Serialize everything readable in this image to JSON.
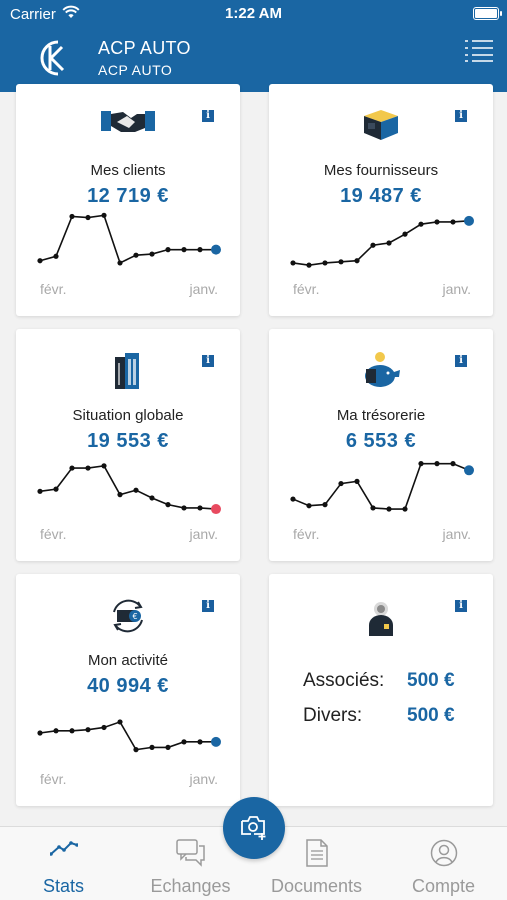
{
  "status_bar": {
    "carrier": "Carrier",
    "time": "1:22 AM"
  },
  "header": {
    "company_name": "ACP AUTO",
    "company_subtitle": "ACP AUTO"
  },
  "colors": {
    "brand": "#1a66a3",
    "alert_point": "#e84a5f"
  },
  "cards": [
    {
      "id": "clients",
      "icon": "handshake-icon",
      "title": "Mes clients",
      "value": "12 719 €",
      "x_start": "févr.",
      "x_end": "janv.",
      "series": [
        6,
        8,
        26,
        25.5,
        26.5,
        5,
        8.5,
        9,
        11,
        11,
        11,
        11
      ],
      "last_point_color": "#1a66a3"
    },
    {
      "id": "fournisseurs",
      "icon": "package-icon",
      "title": "Mes fournisseurs",
      "value": "19 487 €",
      "x_start": "févr.",
      "x_end": "janv.",
      "series": [
        5,
        4,
        5,
        5.5,
        6,
        13,
        14,
        18,
        22.5,
        23.5,
        23.5,
        24
      ],
      "last_point_color": "#1a66a3"
    },
    {
      "id": "situation",
      "icon": "building-icon",
      "title": "Situation globale",
      "value": "19 553 €",
      "x_start": "févr.",
      "x_end": "janv.",
      "series": [
        12.5,
        13.5,
        23,
        23,
        24,
        11,
        13,
        9.5,
        6.5,
        5,
        5,
        4.5
      ],
      "last_point_color": "#e84a5f"
    },
    {
      "id": "tresorerie",
      "icon": "piggy-bank-icon",
      "title": "Ma trésorerie",
      "value": "6 553 €",
      "x_start": "févr.",
      "x_end": "janv.",
      "series": [
        9,
        6,
        6.5,
        16,
        17,
        5,
        4.5,
        4.5,
        25,
        25,
        25,
        22
      ],
      "last_point_color": "#1a66a3"
    },
    {
      "id": "activite",
      "icon": "euro-cycle-icon",
      "title": "Mon activité",
      "value": "40 994 €",
      "x_start": "févr.",
      "x_end": "janv.",
      "series": [
        14,
        15,
        15,
        15.5,
        16.5,
        19,
        6.5,
        7.5,
        7.5,
        10,
        10,
        10
      ],
      "last_point_color": "#1a66a3"
    }
  ],
  "associates_card": {
    "icon": "person-icon",
    "rows": [
      {
        "label": "Associés:",
        "value": "500 €"
      },
      {
        "label": "Divers:",
        "value": "500 €"
      }
    ]
  },
  "tabbar": {
    "tabs": [
      {
        "label": "Stats",
        "icon": "trend-icon",
        "active": true
      },
      {
        "label": "Echanges",
        "icon": "chat-icon",
        "active": false
      },
      {
        "label": "Documents",
        "icon": "document-icon",
        "active": false
      },
      {
        "label": "Compte",
        "icon": "user-circle-icon",
        "active": false
      }
    ],
    "fab_icon": "camera-add-icon"
  }
}
